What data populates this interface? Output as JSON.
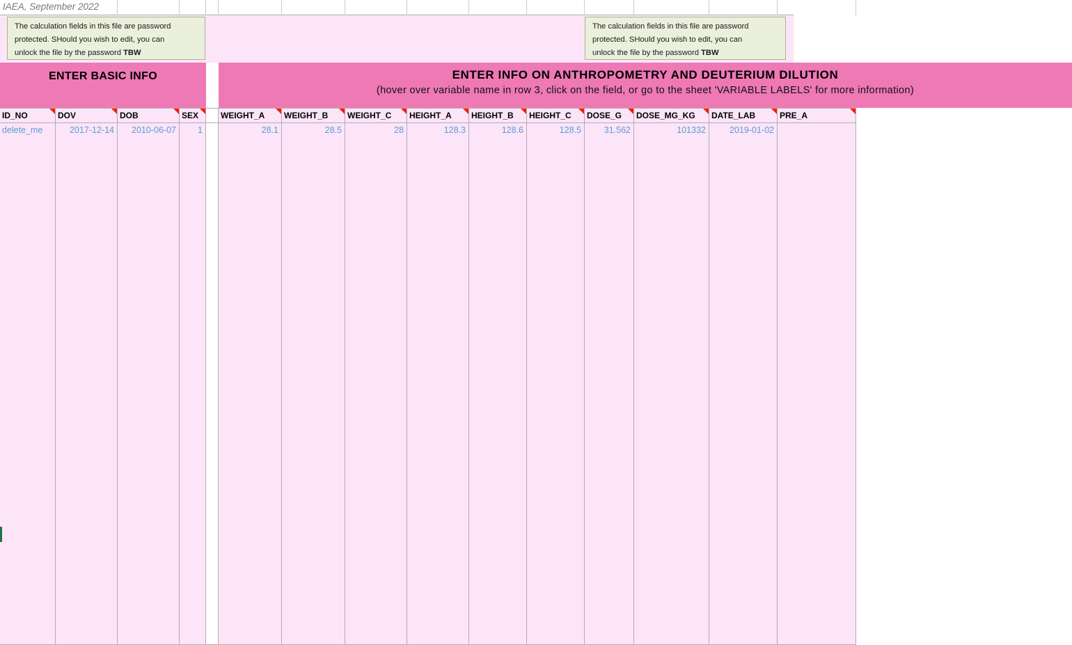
{
  "header": {
    "watermark": "IAEA, September 2022"
  },
  "notes": {
    "body": "The calculation fields in this file are password\nprotected. SHould you wish to edit, you can\nunlock the file by the password ",
    "bold_word": "TBW"
  },
  "banners": {
    "basic_title": "ENTER BASIC INFO",
    "anthro_title": "ENTER INFO ON ANTHROPOMETRY AND DEUTERIUM DILUTION",
    "anthro_subtitle": "(hover over variable name in row 3, click on the field, or go to the sheet 'VARIABLE LABELS' for more information)"
  },
  "table": {
    "columns": [
      {
        "key": "ID_NO",
        "label": "ID_NO"
      },
      {
        "key": "DOV",
        "label": "DOV"
      },
      {
        "key": "DOB",
        "label": "DOB"
      },
      {
        "key": "SEX",
        "label": "SEX"
      },
      {
        "key": "GAP",
        "label": ""
      },
      {
        "key": "WEIGHT_A",
        "label": "WEIGHT_A"
      },
      {
        "key": "WEIGHT_B",
        "label": "WEIGHT_B"
      },
      {
        "key": "WEIGHT_C",
        "label": "WEIGHT_C"
      },
      {
        "key": "HEIGHT_A",
        "label": "HEIGHT_A"
      },
      {
        "key": "HEIGHT_B",
        "label": "HEIGHT_B"
      },
      {
        "key": "HEIGHT_C",
        "label": "HEIGHT_C"
      },
      {
        "key": "DOSE_G",
        "label": "DOSE_G"
      },
      {
        "key": "DOSE_MG_KG",
        "label": "DOSE_MG_KG"
      },
      {
        "key": "DATE_LAB",
        "label": "DATE_LAB"
      },
      {
        "key": "PRE_A",
        "label": "PRE_A"
      }
    ],
    "data_row": [
      "delete_me",
      "2017-12-14",
      "2010-06-07",
      "1",
      "",
      "28.1",
      "28.5",
      "28",
      "128.3",
      "128.6",
      "128.5",
      "31.562",
      "101332",
      "2019-01-02",
      ""
    ],
    "empty_row_count": 34
  },
  "colors": {
    "banner_pink": "#ee79b5",
    "cell_pink": "#fce5f8",
    "gridline": "#b3aab3",
    "value_blue": "#5b9bd5",
    "note_bg": "#eaf0dc",
    "note_border": "#a9b38c",
    "comment_red": "#ff1a00",
    "selection_green": "#1e7145",
    "watermark_gray": "#7a7a7a"
  }
}
